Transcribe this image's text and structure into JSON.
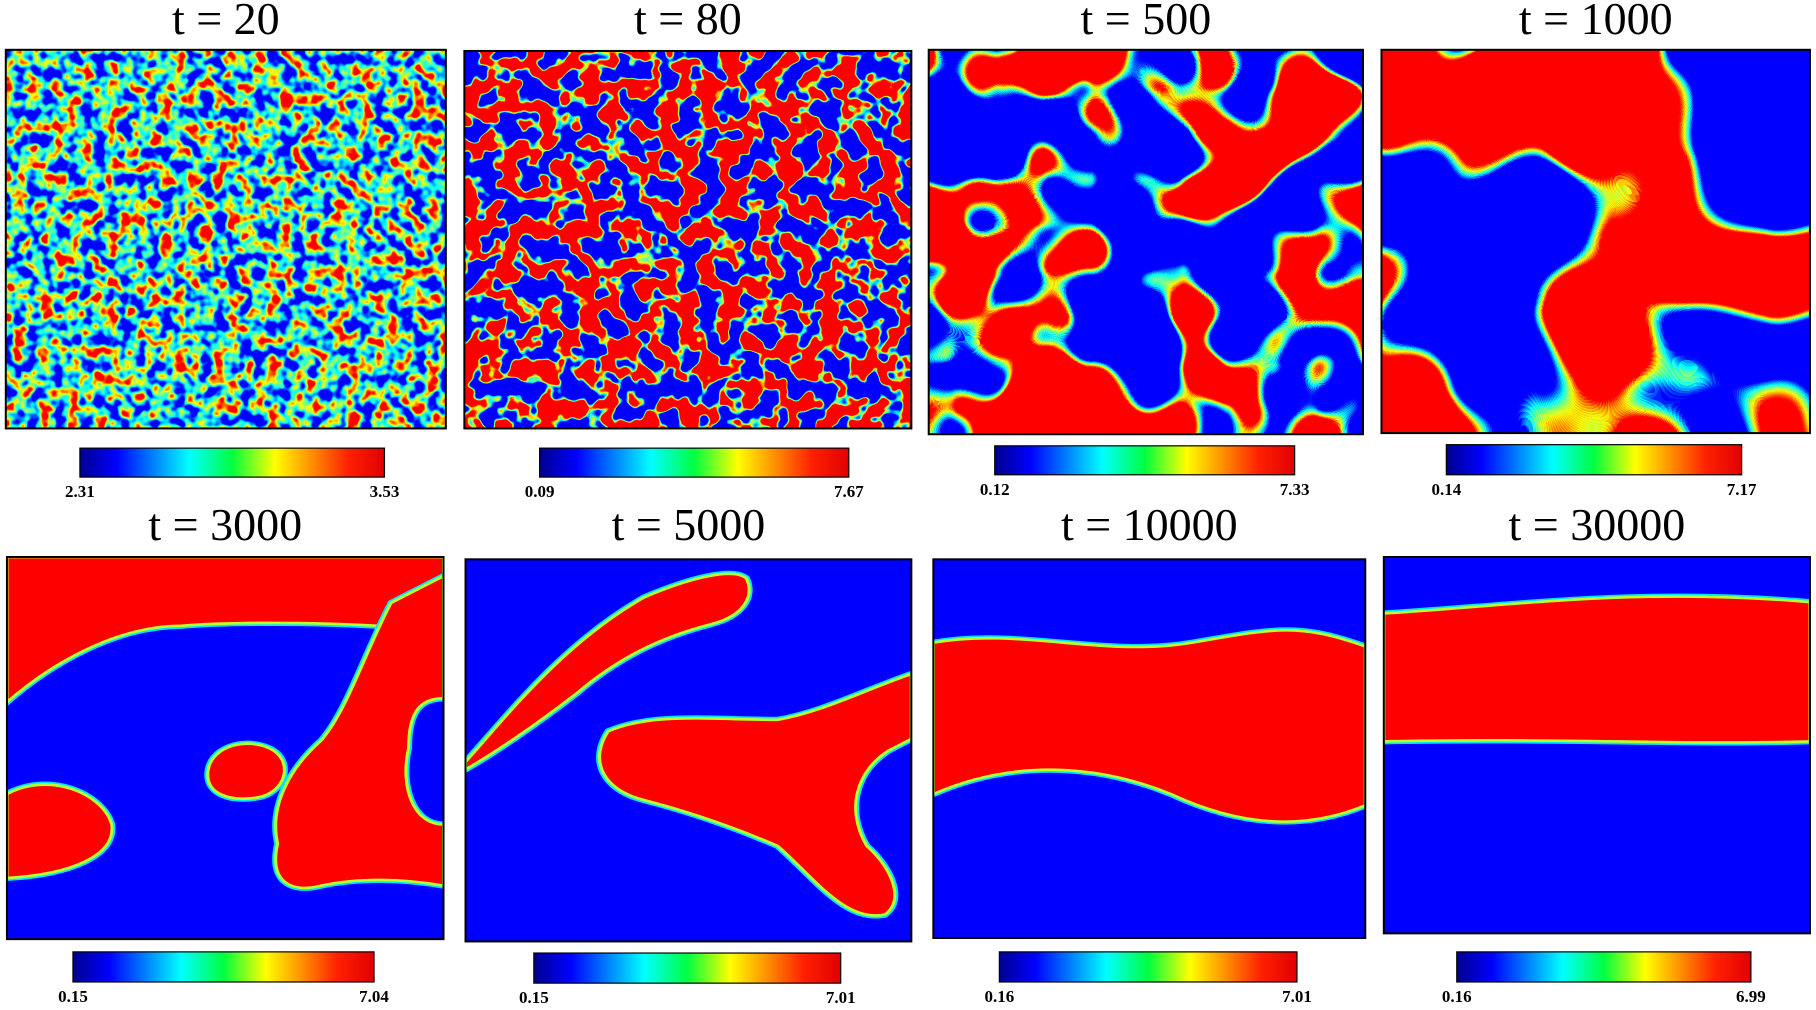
{
  "panels": [
    {
      "title": "t = 20",
      "colorbar_min": 2.31,
      "colorbar_max": 3.53
    },
    {
      "title": "t = 80",
      "colorbar_min": 0.09,
      "colorbar_max": 7.67
    },
    {
      "title": "t = 500",
      "colorbar_min": 0.12,
      "colorbar_max": 7.33
    },
    {
      "title": "t = 1000",
      "colorbar_min": 0.14,
      "colorbar_max": 7.17
    },
    {
      "title": "t = 3000",
      "colorbar_min": 0.15,
      "colorbar_max": 7.04
    },
    {
      "title": "t = 5000",
      "colorbar_min": 0.15,
      "colorbar_max": 7.01
    },
    {
      "title": "t = 10000",
      "colorbar_min": 0.16,
      "colorbar_max": 7.01
    },
    {
      "title": "t = 30000",
      "colorbar_min": 0.16,
      "colorbar_max": 6.99
    }
  ]
}
